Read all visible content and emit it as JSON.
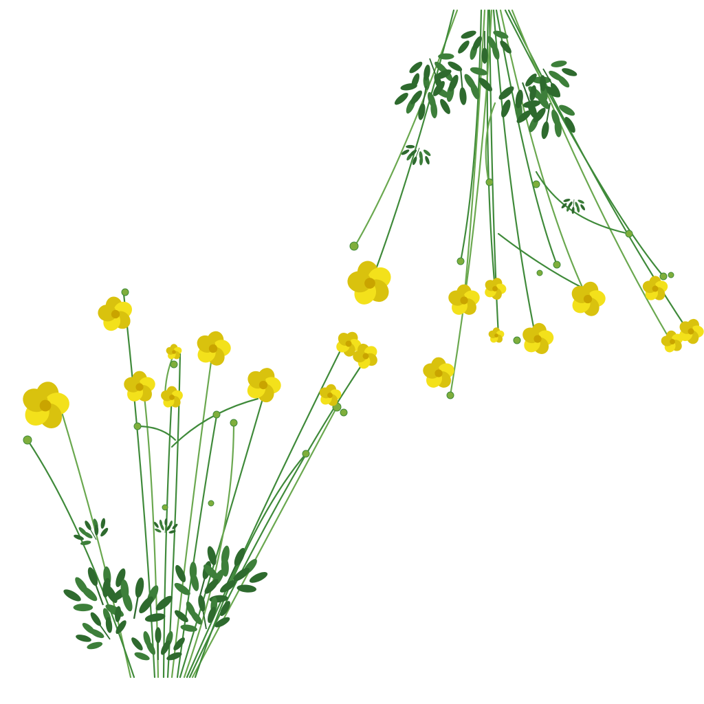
{
  "image": {
    "background_color": "#ffffff",
    "subject": "buttercup-flower-sprigs",
    "colors": {
      "stem": "#3f8a3a",
      "stem_light": "#6aa84f",
      "leaf": "#3d7f3a",
      "leaf_dark": "#2e6a2e",
      "petal": "#f3e11b",
      "petal_shade": "#d9c20e",
      "bud": "#7fae3c",
      "center": "#c9a400"
    }
  }
}
